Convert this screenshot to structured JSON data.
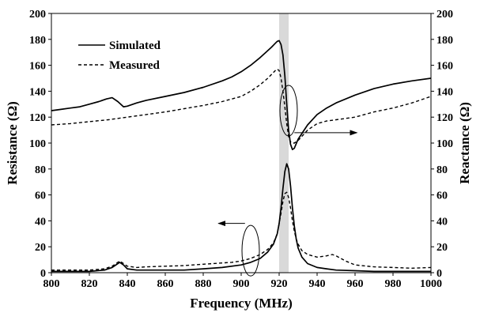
{
  "chart_data": {
    "type": "line",
    "xlabel": "Frequency (MHz)",
    "ylabel_left": "Resistance (Ω)",
    "ylabel_right": "Reactance (Ω)",
    "xlim": [
      800,
      1000
    ],
    "ylim_left": [
      0,
      200
    ],
    "ylim_right": [
      0,
      200
    ],
    "x_ticks": [
      "800",
      "820",
      "840",
      "860",
      "880",
      "900",
      "920",
      "940",
      "960",
      "980",
      "1000"
    ],
    "y_ticks": [
      "0",
      "20",
      "40",
      "60",
      "80",
      "100",
      "120",
      "140",
      "160",
      "180",
      "200"
    ],
    "grid": false,
    "legend": {
      "placement": "top-left",
      "entries": [
        {
          "label": "Simulated",
          "style": "solid"
        },
        {
          "label": "Measured",
          "style": "dashed"
        }
      ]
    },
    "highlight_band": {
      "x_range": [
        920,
        925
      ],
      "color": "#d9d9d9"
    },
    "annotations": [
      {
        "type": "ellipse-arrow",
        "target": "reactance",
        "axis": "right",
        "ellipse_center": [
          925,
          125
        ],
        "arrow_from": [
          928,
          108
        ],
        "arrow_to": [
          961,
          108
        ]
      },
      {
        "type": "ellipse-arrow",
        "target": "resistance",
        "axis": "left",
        "ellipse_center": [
          905,
          17
        ],
        "arrow_from": [
          902,
          38
        ],
        "arrow_to": [
          888,
          38
        ]
      }
    ],
    "series": [
      {
        "axis": "right",
        "quantity": "reactance",
        "label": "Simulated",
        "style": "solid",
        "x": [
          800,
          805,
          810,
          815,
          820,
          825,
          829,
          832,
          835,
          838,
          840,
          845,
          850,
          860,
          870,
          880,
          890,
          895,
          900,
          905,
          910,
          913,
          916,
          918,
          919,
          920,
          921,
          922,
          923,
          924,
          925,
          926,
          927,
          928,
          930,
          935,
          940,
          945,
          950,
          960,
          970,
          980,
          990,
          1000
        ],
        "values": [
          125,
          126,
          127,
          128,
          130,
          132,
          134,
          135,
          132,
          128,
          128.5,
          131,
          133,
          136,
          139,
          143,
          148,
          151,
          155,
          160,
          166,
          170,
          174,
          177,
          178.5,
          179,
          176,
          168,
          152,
          130,
          110,
          99,
          95,
          96,
          103,
          114,
          122,
          127,
          131,
          137,
          142,
          145.5,
          148,
          150
        ]
      },
      {
        "axis": "right",
        "quantity": "reactance",
        "label": "Measured",
        "style": "dashed",
        "x": [
          800,
          810,
          820,
          830,
          840,
          850,
          860,
          870,
          880,
          890,
          900,
          905,
          910,
          914,
          916,
          918,
          919,
          920,
          921,
          922,
          923,
          924,
          925,
          926,
          927,
          928,
          930,
          935,
          940,
          945,
          950,
          960,
          970,
          980,
          990,
          1000
        ],
        "values": [
          114,
          115,
          116.5,
          118,
          120,
          122,
          124,
          126.5,
          129,
          132,
          136,
          140,
          145,
          150,
          153,
          156,
          157,
          156,
          150,
          140,
          128,
          115,
          105,
          101,
          100,
          100,
          102,
          110,
          115,
          117,
          118,
          120,
          124,
          127,
          131,
          136
        ]
      },
      {
        "axis": "left",
        "quantity": "resistance",
        "label": "Simulated",
        "style": "solid",
        "x": [
          800,
          810,
          820,
          828,
          832,
          835,
          836,
          838,
          840,
          845,
          850,
          860,
          870,
          880,
          890,
          900,
          905,
          910,
          914,
          917,
          919,
          920,
          921,
          922,
          923,
          924,
          925,
          926,
          927,
          928,
          929,
          930,
          932,
          935,
          940,
          945,
          950,
          960,
          970,
          980,
          990,
          1000
        ],
        "values": [
          1,
          1,
          1,
          2,
          4,
          7,
          8,
          6,
          3,
          2,
          2,
          2,
          2,
          3,
          4,
          6,
          8,
          11,
          16,
          22,
          30,
          38,
          50,
          65,
          78,
          84,
          80,
          67,
          50,
          36,
          26,
          19,
          12,
          7,
          4,
          3,
          2,
          1.5,
          1,
          1,
          1,
          1
        ]
      },
      {
        "axis": "left",
        "quantity": "resistance",
        "label": "Measured",
        "style": "dashed",
        "x": [
          800,
          810,
          820,
          828,
          832,
          835,
          836,
          838,
          840,
          845,
          850,
          860,
          870,
          880,
          890,
          895,
          900,
          905,
          910,
          914,
          917,
          919,
          920,
          921,
          922,
          923,
          924,
          925,
          926,
          927,
          928,
          929,
          930,
          932,
          935,
          940,
          945,
          948,
          950,
          955,
          960,
          970,
          980,
          990,
          1000
        ],
        "values": [
          2,
          2,
          2,
          3,
          5,
          8,
          9,
          7,
          5,
          4,
          4.5,
          5,
          5.5,
          6.5,
          7.5,
          8,
          9,
          11,
          14,
          18,
          23,
          30,
          38,
          46,
          55,
          61,
          62,
          58,
          50,
          40,
          32,
          26,
          22,
          17,
          14,
          12,
          13,
          14,
          13,
          9,
          6,
          4.5,
          4,
          3.5,
          4
        ]
      }
    ]
  }
}
